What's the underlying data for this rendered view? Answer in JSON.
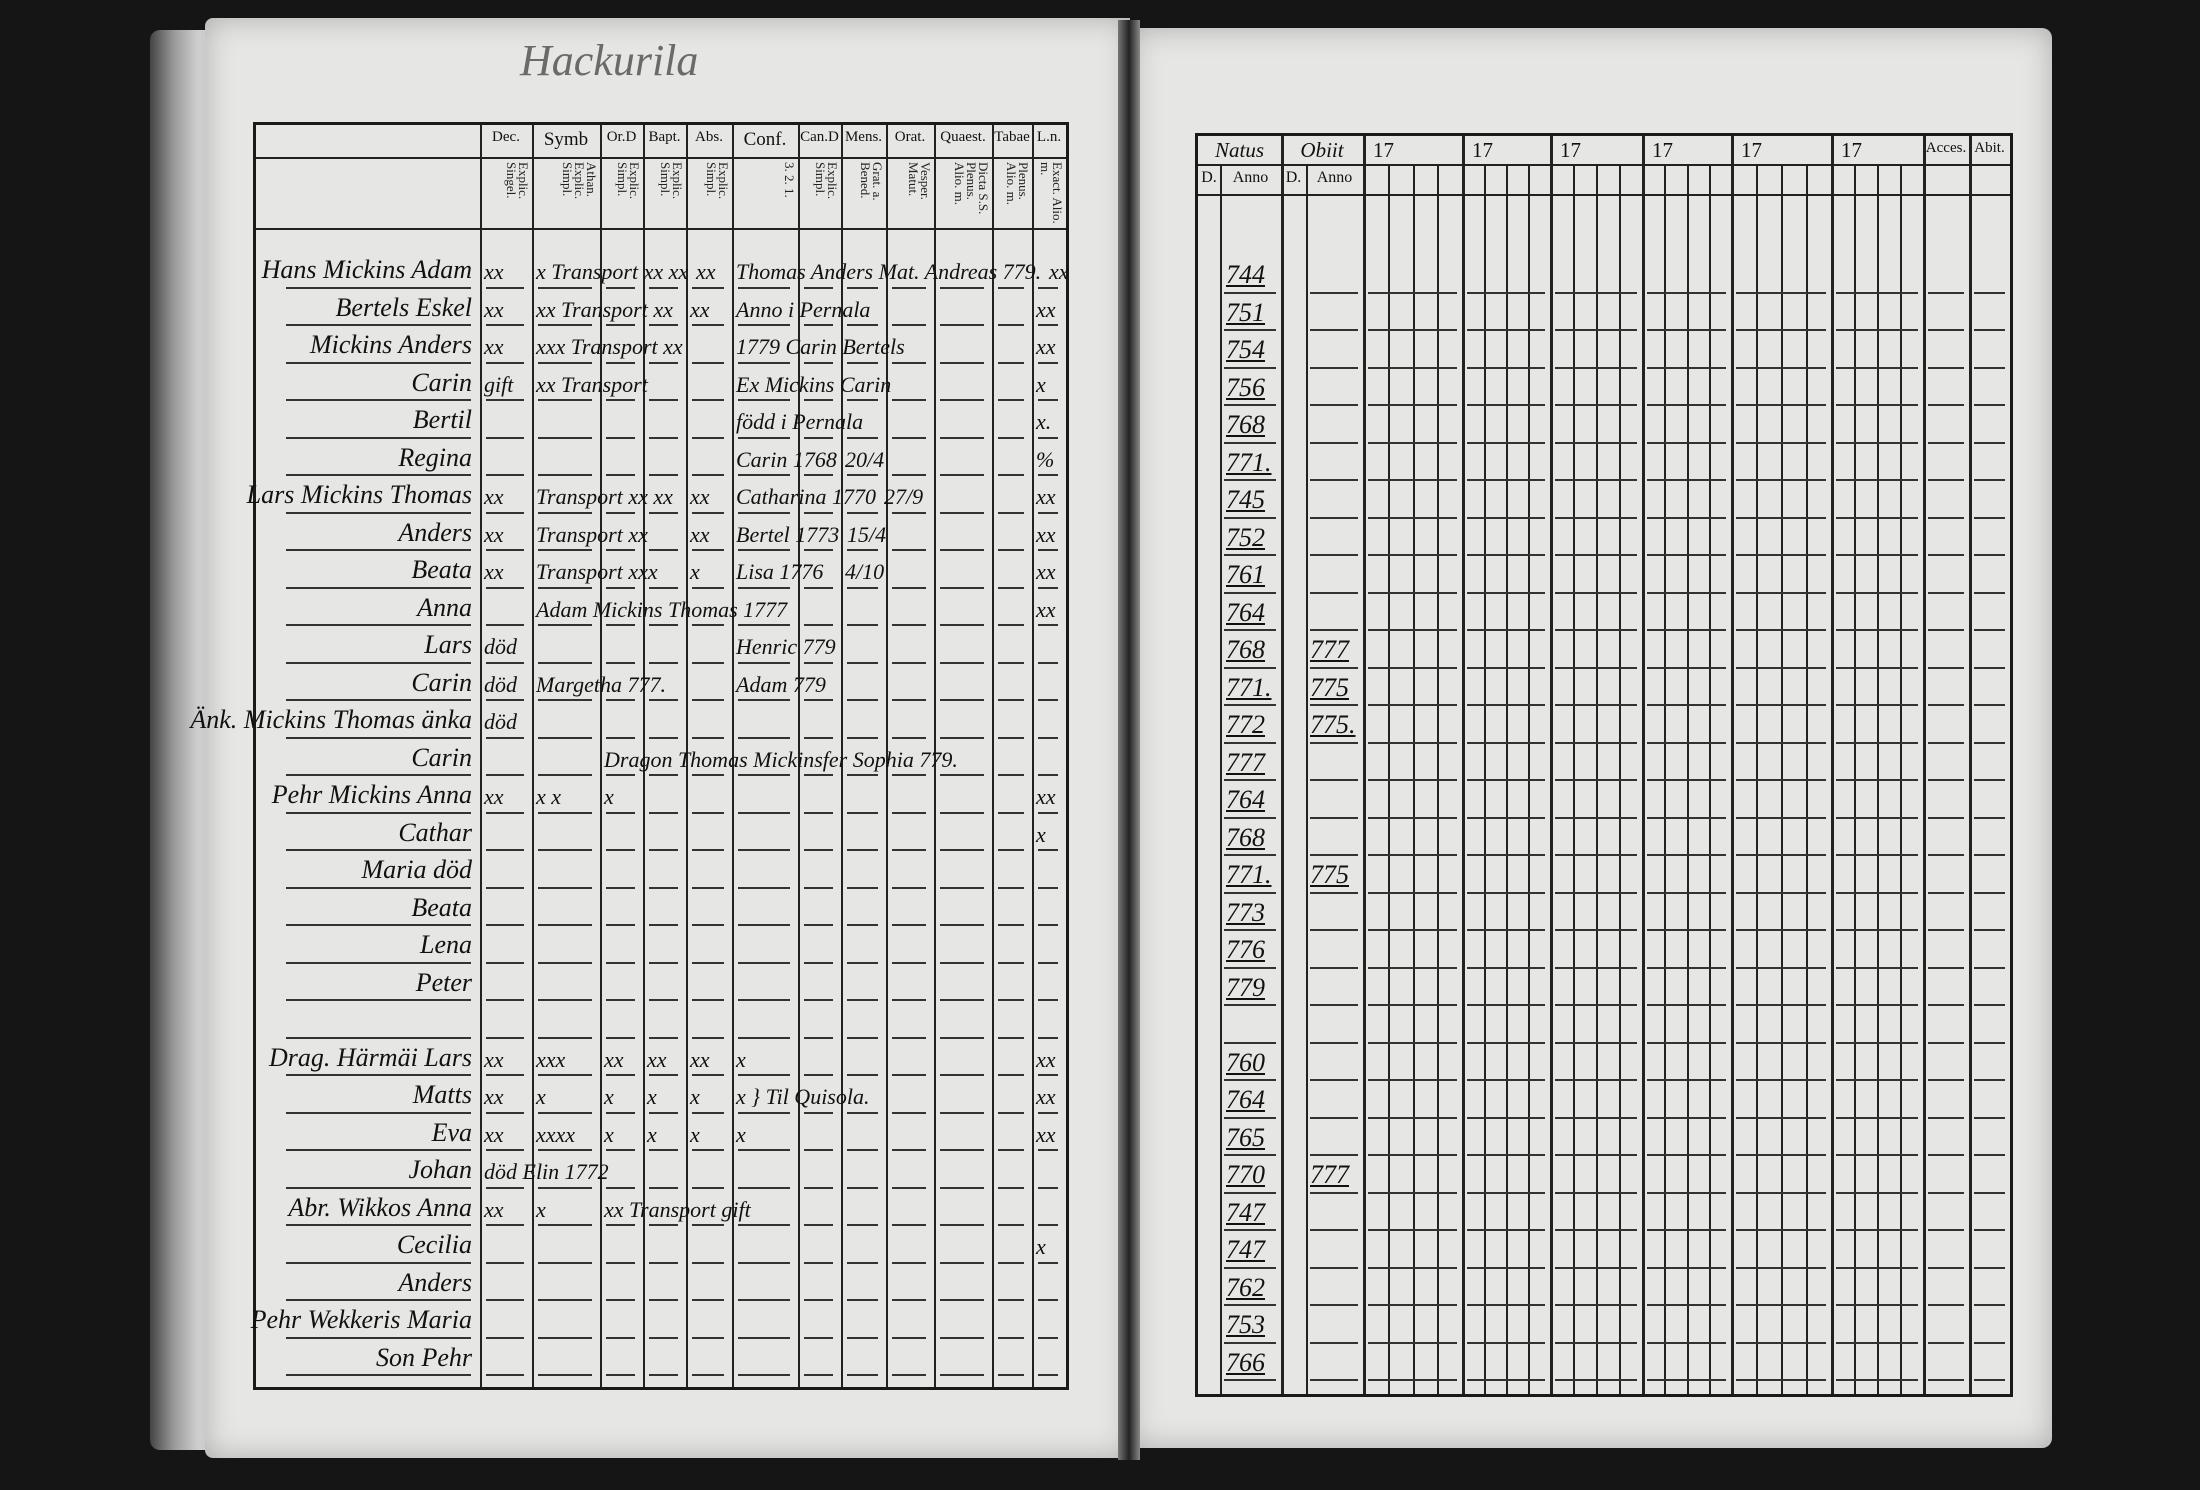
{
  "left_page": {
    "title": "Hackurila",
    "headers": [
      {
        "key": "dec",
        "label": "Dec.",
        "sub": "Explic. Singel."
      },
      {
        "key": "symb",
        "label": "Symb",
        "sub": "Athan. Explic. Simpl."
      },
      {
        "key": "ord",
        "label": "Or.D",
        "sub": "Explic. Simpl."
      },
      {
        "key": "bapt",
        "label": "Bapt.",
        "sub": "Explic. Simpl."
      },
      {
        "key": "abs",
        "label": "Abs.",
        "sub": "Explic. Simpl."
      },
      {
        "key": "conf",
        "label": "Conf.",
        "sub": "3. 2. 1."
      },
      {
        "key": "cand",
        "label": "Can.D",
        "sub": "Explic. Simpl."
      },
      {
        "key": "mens",
        "label": "Mens.",
        "sub": "Grat. a. Bened."
      },
      {
        "key": "orat",
        "label": "Orat.",
        "sub": "Vesper. Matut."
      },
      {
        "key": "quaest",
        "label": "Quaest.",
        "sub": "Dicta S.S. Plenus. Alio. m."
      },
      {
        "key": "tab",
        "label": "Tabae",
        "sub": "Plenus. Alio. m."
      },
      {
        "key": "ln",
        "label": "L.n.",
        "sub": "Exact. Alio. m."
      }
    ],
    "rows": [
      {
        "name": "Hans Mickins Adam",
        "notes": [
          {
            "col": "dec",
            "text": "xx"
          },
          {
            "col": "symb",
            "text": "x Transport xx xx"
          },
          {
            "col": "abs",
            "text": "xx"
          },
          {
            "col": "conf",
            "text": "Thomas Anders Mat. Andreas 779."
          },
          {
            "col": "ln",
            "text": "xx"
          }
        ]
      },
      {
        "name": "Bertels Eskel",
        "notes": [
          {
            "col": "dec",
            "text": "xx"
          },
          {
            "col": "symb",
            "text": "xx Transport xx"
          },
          {
            "col": "abs",
            "text": "xx"
          },
          {
            "col": "conf",
            "text": "Anno i Pernala"
          },
          {
            "col": "ln",
            "text": "xx"
          }
        ]
      },
      {
        "name": "Mickins Anders",
        "notes": [
          {
            "col": "dec",
            "text": "xx"
          },
          {
            "col": "symb",
            "text": "xxx Transport xx"
          },
          {
            "col": "conf",
            "text": "1779 Carin Bertels"
          },
          {
            "col": "ln",
            "text": "xx"
          }
        ]
      },
      {
        "name": "Carin",
        "notes": [
          {
            "col": "dec",
            "text": "gift"
          },
          {
            "col": "symb",
            "text": "xx Transport"
          },
          {
            "col": "conf",
            "text": "Ex Mickins Carin"
          },
          {
            "col": "ln",
            "text": "x"
          }
        ]
      },
      {
        "name": "Bertil",
        "notes": [
          {
            "col": "conf",
            "text": "född i Pernala"
          },
          {
            "col": "ln",
            "text": "x."
          }
        ]
      },
      {
        "name": "Regina",
        "notes": [
          {
            "col": "conf",
            "text": "Carin 1768"
          },
          {
            "col": "mens",
            "text": "20/4"
          },
          {
            "col": "ln",
            "text": "%"
          }
        ]
      },
      {
        "name": "Lars Mickins Thomas",
        "notes": [
          {
            "col": "dec",
            "text": "xx"
          },
          {
            "col": "symb",
            "text": "Transport xx xx"
          },
          {
            "col": "abs",
            "text": "xx"
          },
          {
            "col": "conf",
            "text": "Catharina 1770"
          },
          {
            "col": "mens",
            "text": "27/9"
          },
          {
            "col": "ln",
            "text": "xx"
          }
        ]
      },
      {
        "name": "Anders",
        "notes": [
          {
            "col": "dec",
            "text": "xx"
          },
          {
            "col": "symb",
            "text": "Transport xx"
          },
          {
            "col": "abs",
            "text": "xx"
          },
          {
            "col": "conf",
            "text": "Bertel 1773"
          },
          {
            "col": "mens",
            "text": "15/4"
          },
          {
            "col": "ln",
            "text": "xx"
          }
        ]
      },
      {
        "name": "Beata",
        "notes": [
          {
            "col": "dec",
            "text": "xx"
          },
          {
            "col": "symb",
            "text": "Transport xxx"
          },
          {
            "col": "abs",
            "text": "x"
          },
          {
            "col": "conf",
            "text": "Lisa 1776"
          },
          {
            "col": "mens",
            "text": "4/10"
          },
          {
            "col": "ln",
            "text": "xx"
          }
        ]
      },
      {
        "name": "Anna",
        "notes": [
          {
            "col": "symb",
            "text": "Adam Mickins Thomas 1777"
          },
          {
            "col": "ln",
            "text": "xx"
          }
        ]
      },
      {
        "name": "Lars",
        "notes": [
          {
            "col": "dec",
            "text": "död"
          },
          {
            "col": "conf",
            "text": "Henric 779"
          }
        ]
      },
      {
        "name": "Carin",
        "notes": [
          {
            "col": "dec",
            "text": "död"
          },
          {
            "col": "symb",
            "text": "Margetha 777."
          },
          {
            "col": "conf",
            "text": "Adam 779"
          }
        ]
      },
      {
        "name": "Änk. Mickins Thomas änka",
        "notes": [
          {
            "col": "dec",
            "text": "död"
          }
        ]
      },
      {
        "name": "Carin",
        "notes": [
          {
            "col": "ord",
            "text": "Dragon Thomas Mickinsfer Sophia 779."
          }
        ]
      },
      {
        "name": "Pehr Mickins Anna",
        "notes": [
          {
            "col": "dec",
            "text": "xx"
          },
          {
            "col": "symb",
            "text": "x x"
          },
          {
            "col": "ord",
            "text": "x"
          },
          {
            "col": "ln",
            "text": "xx"
          }
        ]
      },
      {
        "name": "Cathar",
        "notes": [
          {
            "col": "ln",
            "text": "x"
          }
        ]
      },
      {
        "name": "Maria död",
        "notes": []
      },
      {
        "name": "Beata",
        "notes": []
      },
      {
        "name": "Lena",
        "notes": []
      },
      {
        "name": "Peter",
        "notes": []
      },
      {
        "name": "",
        "notes": []
      },
      {
        "name": "Drag. Härmäi Lars",
        "notes": [
          {
            "col": "dec",
            "text": "xx"
          },
          {
            "col": "symb",
            "text": "xxx"
          },
          {
            "col": "ord",
            "text": "xx"
          },
          {
            "col": "bapt",
            "text": "xx"
          },
          {
            "col": "abs",
            "text": "xx"
          },
          {
            "col": "conf",
            "text": "x"
          },
          {
            "col": "ln",
            "text": "xx"
          }
        ]
      },
      {
        "name": "Matts",
        "notes": [
          {
            "col": "dec",
            "text": "xx"
          },
          {
            "col": "symb",
            "text": "x"
          },
          {
            "col": "ord",
            "text": "x"
          },
          {
            "col": "bapt",
            "text": "x"
          },
          {
            "col": "abs",
            "text": "x"
          },
          {
            "col": "conf",
            "text": "x } Til Quisola."
          },
          {
            "col": "ln",
            "text": "xx"
          }
        ]
      },
      {
        "name": "Eva",
        "notes": [
          {
            "col": "dec",
            "text": "xx"
          },
          {
            "col": "symb",
            "text": "xxxx"
          },
          {
            "col": "ord",
            "text": "x"
          },
          {
            "col": "bapt",
            "text": "x"
          },
          {
            "col": "abs",
            "text": "x"
          },
          {
            "col": "conf",
            "text": "x"
          },
          {
            "col": "ln",
            "text": "xx"
          }
        ]
      },
      {
        "name": "Johan",
        "notes": [
          {
            "col": "dec",
            "text": "död Elin 1772"
          }
        ]
      },
      {
        "name": "Abr. Wikkos Anna",
        "notes": [
          {
            "col": "dec",
            "text": "xx"
          },
          {
            "col": "symb",
            "text": "x"
          },
          {
            "col": "ord",
            "text": "xx Transport gift"
          }
        ]
      },
      {
        "name": "Cecilia",
        "notes": [
          {
            "col": "ln",
            "text": "x"
          }
        ]
      },
      {
        "name": "Anders",
        "notes": []
      },
      {
        "name": "Pehr Wekkeris Maria",
        "notes": []
      },
      {
        "name": "Son Pehr",
        "notes": []
      }
    ]
  },
  "right_page": {
    "headers": {
      "natus": "Natus",
      "obiit": "Obiit",
      "years": [
        "17",
        "17",
        "17",
        "17",
        "17",
        "17"
      ],
      "accessit": "Acces.",
      "abiit": "Abit.",
      "day": "D.",
      "anno": "Anno"
    },
    "rows": [
      {
        "natus": "744",
        "obiit": ""
      },
      {
        "natus": "751",
        "obiit": ""
      },
      {
        "natus": "754",
        "obiit": ""
      },
      {
        "natus": "756",
        "obiit": ""
      },
      {
        "natus": "768",
        "obiit": ""
      },
      {
        "natus": "771.",
        "obiit": ""
      },
      {
        "natus": "745",
        "obiit": ""
      },
      {
        "natus": "752",
        "obiit": ""
      },
      {
        "natus": "761",
        "obiit": ""
      },
      {
        "natus": "764",
        "obiit": ""
      },
      {
        "natus": "768",
        "obiit": "777"
      },
      {
        "natus": "771.",
        "obiit": "775"
      },
      {
        "natus": "772",
        "obiit": "775."
      },
      {
        "natus": "777",
        "obiit": ""
      },
      {
        "natus": "764",
        "obiit": ""
      },
      {
        "natus": "768",
        "obiit": ""
      },
      {
        "natus": "771.",
        "obiit": "775"
      },
      {
        "natus": "773",
        "obiit": ""
      },
      {
        "natus": "776",
        "obiit": ""
      },
      {
        "natus": "779",
        "obiit": ""
      },
      {
        "natus": "",
        "obiit": ""
      },
      {
        "natus": "760",
        "obiit": ""
      },
      {
        "natus": "764",
        "obiit": ""
      },
      {
        "natus": "765",
        "obiit": ""
      },
      {
        "natus": "770",
        "obiit": "777"
      },
      {
        "natus": "747",
        "obiit": ""
      },
      {
        "natus": "747",
        "obiit": ""
      },
      {
        "natus": "762",
        "obiit": ""
      },
      {
        "natus": "753",
        "obiit": ""
      },
      {
        "natus": "766",
        "obiit": ""
      }
    ]
  }
}
